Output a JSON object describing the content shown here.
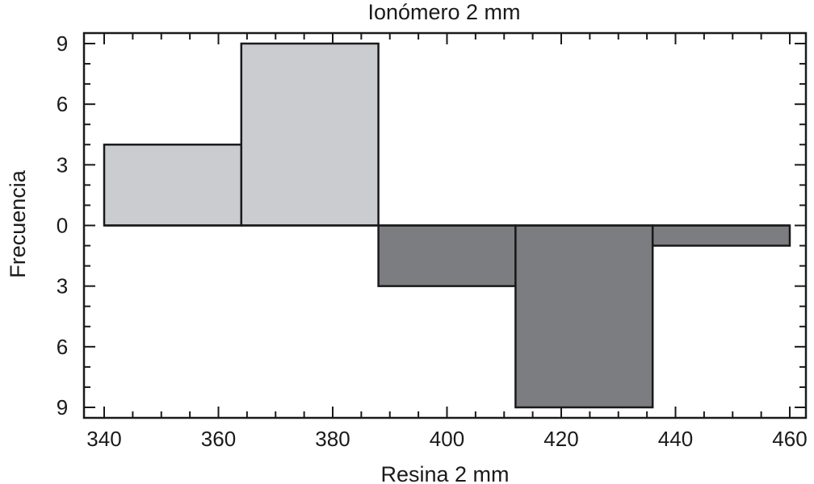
{
  "chart_data": {
    "type": "bar",
    "subtype": "back-to-back histogram",
    "title": "Ionómero 2 mm",
    "xlabel": "Resina 2 mm",
    "ylabel": "Frecuencia",
    "xlim": [
      340,
      460
    ],
    "ylim": [
      -9,
      9
    ],
    "x_ticks": [
      340,
      360,
      380,
      400,
      420,
      440,
      460
    ],
    "x_tick_labels": [
      "340",
      "360",
      "380",
      "400",
      "420",
      "440",
      "460"
    ],
    "y_ticks": [
      9,
      6,
      3,
      0,
      -3,
      -6,
      -9
    ],
    "y_tick_labels": [
      "9",
      "6",
      "3",
      "0",
      "3",
      "6",
      "9"
    ],
    "grid": false,
    "series": [
      {
        "color": "#cbcccf",
        "direction": "up",
        "bins": [
          {
            "x0": 340,
            "x1": 364,
            "value": 4
          },
          {
            "x0": 364,
            "x1": 388,
            "value": 9
          }
        ]
      },
      {
        "color": "#7c7d80",
        "direction": "down",
        "bins": [
          {
            "x0": 388,
            "x1": 412,
            "value": 3
          },
          {
            "x0": 412,
            "x1": 436,
            "value": 9
          },
          {
            "x0": 436,
            "x1": 460,
            "value": 1
          }
        ]
      }
    ]
  }
}
